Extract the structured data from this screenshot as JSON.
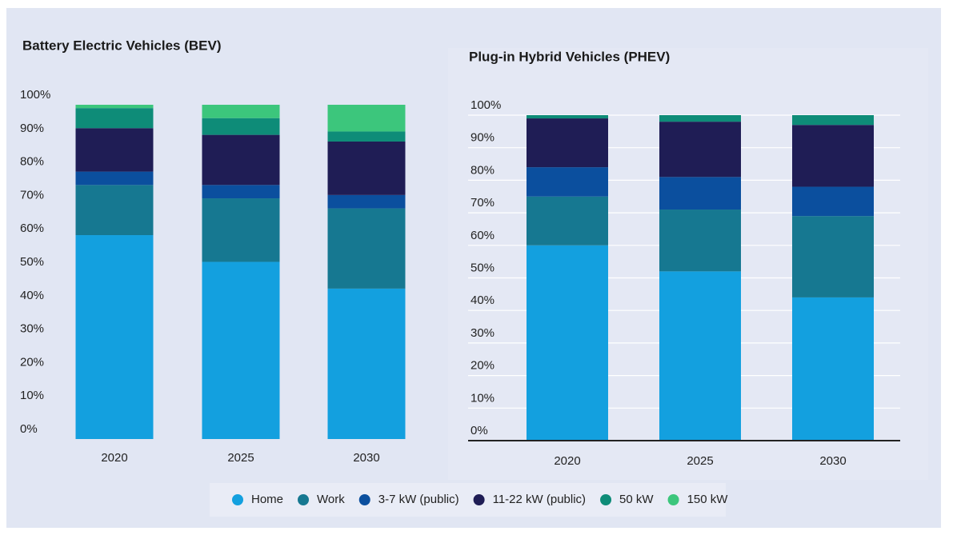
{
  "chart_data": [
    {
      "type": "stacked_bar",
      "title": "Battery Electric Vehicles (BEV)",
      "categories": [
        "2020",
        "2025",
        "2030"
      ],
      "series": [
        {
          "values": [
            61,
            53,
            45
          ]
        },
        {
          "values": [
            15,
            19,
            24
          ]
        },
        {
          "values": [
            4,
            4,
            4
          ]
        },
        {
          "values": [
            13,
            15,
            16
          ]
        },
        {
          "values": [
            6,
            5,
            3
          ]
        },
        {
          "values": [
            1,
            4,
            8
          ]
        }
      ],
      "ylim": [
        0,
        100
      ],
      "yticks": [
        {
          "value": 0,
          "label": "0%"
        },
        {
          "value": 10,
          "label": "10%"
        },
        {
          "value": 20,
          "label": "20%"
        },
        {
          "value": 30,
          "label": "30%"
        },
        {
          "value": 40,
          "label": "40%"
        },
        {
          "value": 50,
          "label": "50%"
        },
        {
          "value": 60,
          "label": "60%"
        },
        {
          "value": 70,
          "label": "70%"
        },
        {
          "value": 80,
          "label": "80%"
        },
        {
          "value": 90,
          "label": "90%"
        },
        {
          "value": 100,
          "label": "100%"
        }
      ],
      "grid": false
    },
    {
      "type": "stacked_bar",
      "title": "Plug-in Hybrid Vehicles (PHEV)",
      "categories": [
        "2020",
        "2025",
        "2030"
      ],
      "series": [
        {
          "values": [
            60,
            52,
            44
          ]
        },
        {
          "values": [
            15,
            19,
            25
          ]
        },
        {
          "values": [
            9,
            10,
            9
          ]
        },
        {
          "values": [
            15,
            17,
            19
          ]
        },
        {
          "values": [
            1,
            2,
            3
          ]
        },
        {
          "values": [
            0,
            0,
            0
          ]
        }
      ],
      "ylim": [
        0,
        100
      ],
      "yticks": [
        {
          "value": 0,
          "label": "0%"
        },
        {
          "value": 10,
          "label": "10%"
        },
        {
          "value": 20,
          "label": "20%"
        },
        {
          "value": 30,
          "label": "30%"
        },
        {
          "value": 40,
          "label": "40%"
        },
        {
          "value": 50,
          "label": "50%"
        },
        {
          "value": 60,
          "label": "60%"
        },
        {
          "value": 70,
          "label": "70%"
        },
        {
          "value": 80,
          "label": "80%"
        },
        {
          "value": 90,
          "label": "90%"
        },
        {
          "value": 100,
          "label": "100%"
        }
      ],
      "grid": true
    }
  ],
  "legend": [
    {
      "name": "Home",
      "color": "#13a0df"
    },
    {
      "name": "Work",
      "color": "#167891"
    },
    {
      "name": "3-7 kW (public)",
      "color": "#0b4f9e"
    },
    {
      "name": "11-22 kW (public)",
      "color": "#1f1d55"
    },
    {
      "name": "50 kW",
      "color": "#0e8c78"
    },
    {
      "name": "150 kW",
      "color": "#3cc67c"
    }
  ]
}
